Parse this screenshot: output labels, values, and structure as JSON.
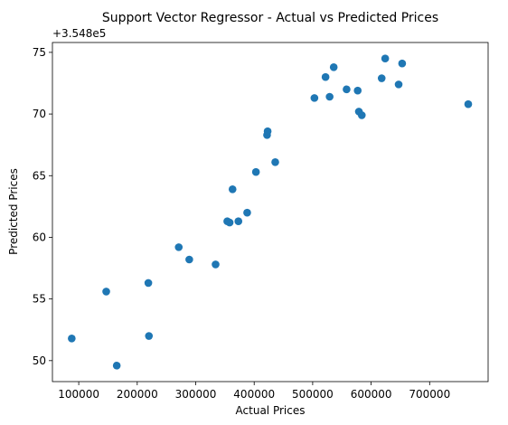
{
  "chart_data": {
    "type": "scatter",
    "title": "Support Vector Regressor - Actual vs Predicted Prices",
    "xlabel": "Actual Prices",
    "ylabel": "Predicted Prices",
    "y_offset_label": "+3.548e5",
    "xlim": [
      55000,
      800000
    ],
    "ylim": [
      48.3,
      75.8
    ],
    "x_ticks": [
      100000,
      200000,
      300000,
      400000,
      500000,
      600000,
      700000
    ],
    "x_tick_labels": [
      "100000",
      "200000",
      "300000",
      "400000",
      "500000",
      "600000",
      "700000"
    ],
    "y_ticks": [
      50,
      55,
      60,
      65,
      70
    ],
    "y_tick_labels": [
      "50",
      "55",
      "60",
      "65",
      "70"
    ],
    "y_ticks_extra": [
      75
    ],
    "y_tick_labels_extra": [
      "75"
    ],
    "grid": false,
    "point_color": "#1f77b4",
    "points": [
      {
        "x": 88000,
        "y": 51.8
      },
      {
        "x": 147000,
        "y": 55.6
      },
      {
        "x": 165000,
        "y": 49.6
      },
      {
        "x": 219000,
        "y": 56.3
      },
      {
        "x": 220000,
        "y": 52.0
      },
      {
        "x": 271000,
        "y": 59.2
      },
      {
        "x": 289000,
        "y": 58.2
      },
      {
        "x": 334000,
        "y": 57.8
      },
      {
        "x": 354000,
        "y": 61.3
      },
      {
        "x": 358000,
        "y": 61.2
      },
      {
        "x": 363000,
        "y": 63.9
      },
      {
        "x": 373000,
        "y": 61.3
      },
      {
        "x": 388000,
        "y": 62.0
      },
      {
        "x": 403000,
        "y": 65.3
      },
      {
        "x": 422000,
        "y": 68.3
      },
      {
        "x": 423000,
        "y": 68.6
      },
      {
        "x": 436000,
        "y": 66.1
      },
      {
        "x": 503000,
        "y": 71.3
      },
      {
        "x": 522000,
        "y": 73.0
      },
      {
        "x": 529000,
        "y": 71.4
      },
      {
        "x": 536000,
        "y": 73.8
      },
      {
        "x": 558000,
        "y": 72.0
      },
      {
        "x": 577000,
        "y": 71.9
      },
      {
        "x": 579000,
        "y": 70.2
      },
      {
        "x": 584000,
        "y": 69.9
      },
      {
        "x": 618000,
        "y": 72.9
      },
      {
        "x": 624000,
        "y": 74.5
      },
      {
        "x": 647000,
        "y": 72.4
      },
      {
        "x": 653000,
        "y": 74.1
      },
      {
        "x": 766000,
        "y": 70.8
      }
    ]
  }
}
